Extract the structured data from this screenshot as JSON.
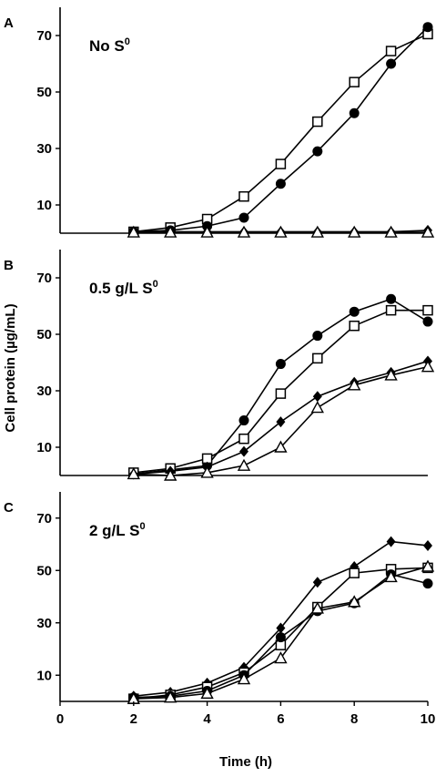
{
  "chart_data": {
    "type": "line",
    "xlabel": "Time (h)",
    "ylabel": "Cell protein (µg/mL)",
    "xlim": [
      0,
      10
    ],
    "xticks": [
      0,
      2,
      4,
      6,
      8,
      10
    ],
    "ylim": [
      0,
      80
    ],
    "yticks": [
      10,
      30,
      50,
      70
    ],
    "grid": false,
    "x": [
      2,
      3,
      4,
      5,
      6,
      7,
      8,
      9,
      10
    ],
    "panels": [
      {
        "letter": "A",
        "condition_main": "No S",
        "condition_sup": "0",
        "series": [
          {
            "marker": "open-square",
            "values": [
              0.5,
              2,
              5,
              13,
              24.5,
              39.5,
              53.5,
              64.5,
              70.5
            ]
          },
          {
            "marker": "filled-circle",
            "values": [
              0.5,
              1,
              2.5,
              5.5,
              17.5,
              29,
              42.5,
              60,
              73
            ]
          },
          {
            "marker": "filled-diamond",
            "values": [
              0.5,
              0.5,
              0.5,
              0.5,
              0.5,
              0.5,
              0.5,
              0.5,
              1
            ]
          },
          {
            "marker": "open-triangle",
            "values": [
              0.3,
              0.3,
              0.3,
              0.3,
              0.3,
              0.3,
              0.3,
              0.3,
              0.3
            ]
          }
        ]
      },
      {
        "letter": "B",
        "condition_main": "0.5 g/L S",
        "condition_sup": "0",
        "series": [
          {
            "marker": "filled-circle",
            "values": [
              0.5,
              2,
              3.5,
              19.5,
              39.5,
              49.5,
              58,
              62.5,
              54.5
            ]
          },
          {
            "marker": "open-square",
            "values": [
              1,
              2.5,
              6,
              13,
              29,
              41.5,
              53,
              58.5,
              58.5
            ]
          },
          {
            "marker": "filled-diamond",
            "values": [
              0.5,
              1.5,
              3,
              8.5,
              19,
              28,
              33,
              36.5,
              40.5
            ]
          },
          {
            "marker": "open-triangle",
            "values": [
              0.5,
              0,
              1,
              3.5,
              10,
              24,
              32,
              35.5,
              38.5
            ]
          }
        ]
      },
      {
        "letter": "C",
        "condition_main": "2 g/L S",
        "condition_sup": "0",
        "series": [
          {
            "marker": "filled-diamond",
            "values": [
              2,
              3.5,
              7,
              13,
              28,
              45.5,
              51.5,
              61,
              59.5
            ]
          },
          {
            "marker": "open-square",
            "values": [
              1,
              2.5,
              5.5,
              11,
              21.5,
              36,
              49,
              50.5,
              51
            ]
          },
          {
            "marker": "filled-circle",
            "values": [
              1.5,
              2,
              4,
              10,
              24.5,
              34.5,
              37.5,
              48.5,
              45
            ]
          },
          {
            "marker": "open-triangle",
            "values": [
              1,
              1.5,
              3,
              8.5,
              16.5,
              35.5,
              38,
              47.5,
              51.5
            ]
          }
        ]
      }
    ]
  }
}
